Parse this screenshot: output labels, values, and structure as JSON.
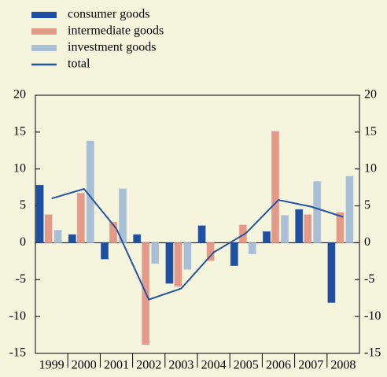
{
  "chart_data": {
    "type": "bar-line",
    "categories": [
      "1999",
      "2000",
      "2001",
      "2002",
      "2003",
      "2004",
      "2005",
      "2006",
      "2007",
      "2008"
    ],
    "series": [
      {
        "name": "consumer goods",
        "color": "#1f4fa0",
        "values": [
          7.8,
          1.1,
          -2.2,
          1.1,
          -5.5,
          2.3,
          -3.1,
          1.5,
          4.5,
          -8.1
        ]
      },
      {
        "name": "intermediate goods",
        "color": "#e49a88",
        "values": [
          3.8,
          6.7,
          2.8,
          -13.8,
          -5.9,
          -2.4,
          2.4,
          15.1,
          3.8,
          4.1
        ]
      },
      {
        "name": "investment goods",
        "color": "#a9bfd6",
        "values": [
          1.7,
          13.8,
          7.3,
          -2.8,
          -3.6,
          0,
          -1.5,
          3.7,
          8.3,
          9.0
        ]
      },
      {
        "name": "total",
        "color": "#2653a0",
        "type": "line",
        "values": [
          6.0,
          7.3,
          1.9,
          -7.7,
          -6.2,
          -1.3,
          1.3,
          5.8,
          4.9,
          3.5
        ]
      }
    ],
    "ylim": [
      -15,
      20
    ],
    "yticks": [
      -15,
      -10,
      -5,
      0,
      5,
      10,
      15,
      20
    ],
    "y2lim": [
      -15,
      20
    ],
    "y2ticks": [
      -15,
      -10,
      -5,
      0,
      5,
      10,
      15,
      20
    ],
    "legend": "top-left"
  }
}
